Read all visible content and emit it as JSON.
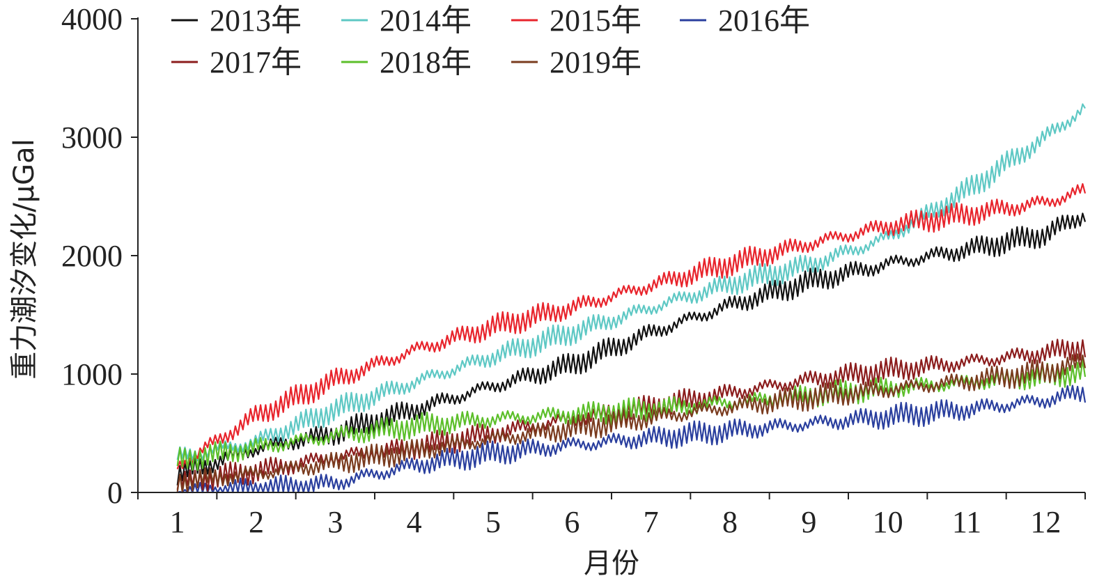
{
  "chart_data": {
    "type": "line",
    "title": "",
    "xlabel": "月份",
    "ylabel": "重力潮汐变化/μGal",
    "x_ticks": [
      "1",
      "2",
      "3",
      "4",
      "5",
      "6",
      "7",
      "8",
      "9",
      "10",
      "11",
      "12"
    ],
    "xlim": [
      0.5,
      12.5
    ],
    "ylim": [
      0,
      4000
    ],
    "y_ticks": [
      0,
      1000,
      2000,
      3000,
      4000
    ],
    "grid": false,
    "legend_position": "top",
    "series": [
      {
        "name": "2013年",
        "color": "#111111",
        "x": [
          1,
          2,
          3,
          4,
          5,
          6,
          7,
          8,
          9,
          10,
          11,
          12,
          12.5
        ],
        "y": [
          150,
          370,
          500,
          700,
          900,
          1080,
          1350,
          1580,
          1780,
          1930,
          2050,
          2180,
          2350
        ]
      },
      {
        "name": "2014年",
        "color": "#5ec8c4",
        "x": [
          1,
          2,
          3,
          4,
          5,
          6,
          7,
          8,
          9,
          10,
          11,
          12,
          12.5
        ],
        "y": [
          300,
          430,
          700,
          930,
          1150,
          1350,
          1560,
          1760,
          1920,
          2150,
          2550,
          3000,
          3250
        ]
      },
      {
        "name": "2015年",
        "color": "#e8242c",
        "x": [
          1,
          2,
          3,
          4,
          5,
          6,
          7,
          8,
          9,
          10,
          11,
          12,
          12.5
        ],
        "y": [
          220,
          650,
          950,
          1200,
          1400,
          1560,
          1750,
          1930,
          2100,
          2250,
          2350,
          2450,
          2550
        ]
      },
      {
        "name": "2016年",
        "color": "#2a3f9e",
        "x": [
          1,
          2,
          3,
          4,
          5,
          6,
          7,
          8,
          9,
          10,
          11,
          12,
          12.5
        ],
        "y": [
          0,
          20,
          80,
          230,
          330,
          400,
          460,
          520,
          580,
          640,
          700,
          780,
          850
        ]
      },
      {
        "name": "2017年",
        "color": "#8b1c1c",
        "x": [
          1,
          2,
          3,
          4,
          5,
          6,
          7,
          8,
          9,
          10,
          11,
          12,
          12.5
        ],
        "y": [
          80,
          180,
          300,
          380,
          500,
          620,
          720,
          840,
          950,
          1030,
          1100,
          1180,
          1230
        ]
      },
      {
        "name": "2018年",
        "color": "#5cbf2a",
        "x": [
          1,
          2,
          3,
          4,
          5,
          6,
          7,
          8,
          9,
          10,
          11,
          12,
          12.5
        ],
        "y": [
          270,
          380,
          480,
          560,
          620,
          660,
          700,
          760,
          820,
          880,
          930,
          980,
          1020
        ]
      },
      {
        "name": "2019年",
        "color": "#7a3b1e",
        "x": [
          1,
          2,
          3,
          4,
          5,
          6,
          7,
          8,
          9,
          10,
          11,
          12,
          12.5
        ],
        "y": [
          90,
          160,
          250,
          350,
          450,
          540,
          630,
          720,
          800,
          870,
          940,
          1020,
          1100
        ]
      }
    ]
  }
}
